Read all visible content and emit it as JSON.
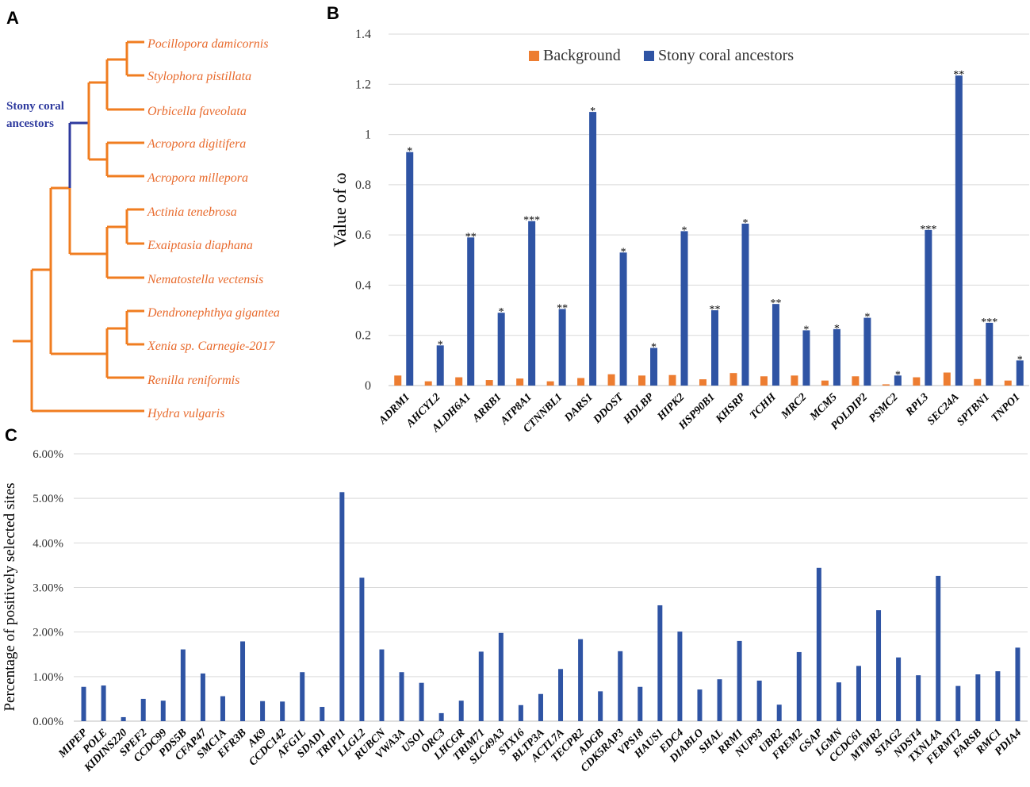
{
  "panels": {
    "a": "A",
    "b": "B",
    "c": "C"
  },
  "tree": {
    "ancestor_label_line1": "Stony coral",
    "ancestor_label_line2": "ancestors",
    "species": [
      "Pocillopora damicornis",
      "Stylophora pistillata",
      "Orbicella faveolata",
      "Acropora digitifera",
      "Acropora millepora",
      "Actinia tenebrosa",
      "Exaiptasia diaphana",
      "Nematostella vectensis",
      "Dendronephthya gigantea",
      "Xenia sp. Carnegie-2017",
      "Renilla reniformis",
      "Hydra vulgaris"
    ],
    "colors": {
      "branch": "#f07d20",
      "ancestor_branch": "#2e3a9e",
      "species_text": "#e86a2c"
    }
  },
  "chart_data": [
    {
      "type": "bar",
      "panel": "B",
      "ylabel": "Value of ω",
      "ylim": [
        0,
        1.4
      ],
      "yticks": [
        "0",
        "0.2",
        "0.4",
        "0.6",
        "0.8",
        "1",
        "1.2",
        "1.4"
      ],
      "legend": [
        "Background",
        "Stony coral ancestors"
      ],
      "legend_position": "top-center",
      "colors": {
        "Background": "#ed7d31",
        "Stony coral ancestors": "#2f54a4"
      },
      "categories": [
        "ADRM1",
        "AHCYL2",
        "ALDH6A1",
        "ARRB1",
        "ATP8A1",
        "CTNNBL1",
        "DARS1",
        "DDOST",
        "HDLBP",
        "HIPK2",
        "HSP90B1",
        "KHSRP",
        "TCHH",
        "MRC2",
        "MCM5",
        "POLDIP2",
        "PSMC2",
        "RPL3",
        "SEC24A",
        "SPTBN1",
        "TNPO1"
      ],
      "series": [
        {
          "name": "Background",
          "values": [
            0.04,
            0.017,
            0.033,
            0.022,
            0.028,
            0.017,
            0.03,
            0.045,
            0.04,
            0.042,
            0.025,
            0.05,
            0.037,
            0.04,
            0.02,
            0.037,
            0.005,
            0.033,
            0.052,
            0.026,
            0.02
          ]
        },
        {
          "name": "Stony coral ancestors",
          "values": [
            0.93,
            0.16,
            0.59,
            0.29,
            0.655,
            0.305,
            1.09,
            0.53,
            0.15,
            0.615,
            0.3,
            0.645,
            0.325,
            0.22,
            0.225,
            0.27,
            0.04,
            0.62,
            1.235,
            0.25,
            0.1
          ]
        }
      ],
      "significance": [
        "*",
        "*",
        "**",
        "*",
        "***",
        "**",
        "*",
        "*",
        "*",
        "*",
        "**",
        "*",
        "**",
        "*",
        "*",
        "*",
        "*",
        "***",
        "**",
        "***",
        "*"
      ]
    },
    {
      "type": "bar",
      "panel": "C",
      "ylabel": "Percentage of positively selected sites",
      "ylim": [
        0,
        6
      ],
      "yticks": [
        "0.00%",
        "1.00%",
        "2.00%",
        "3.00%",
        "4.00%",
        "5.00%",
        "6.00%"
      ],
      "color": "#2f54a4",
      "categories": [
        "MIPEP",
        "POLE",
        "KIDINS220",
        "SPEF2",
        "CCDC99",
        "PDS5B",
        "CFAP47",
        "SMC1A",
        "EFR3B",
        "AK9",
        "CCDC142",
        "AFG1L",
        "SDAD1",
        "TRIP11",
        "LLGL2",
        "RUBCN",
        "VWA3A",
        "USO1",
        "ORC3",
        "LHCGR",
        "TRIM71",
        "SLC49A3",
        "STX16",
        "BLTP3A",
        "ACTL7A",
        "TECPR2",
        "ADGB",
        "CDK5RAP3",
        "VPS18",
        "HAUS1",
        "EDC4",
        "DIABLO",
        "SHAL",
        "RRM1",
        "NUP93",
        "UBR2",
        "FREM2",
        "GSAP",
        "LGMN",
        "CCDC61",
        "MTMR2",
        "STAG2",
        "NDST4",
        "TXNL4A",
        "FERMT2",
        "FARSB",
        "RMC1",
        "PDIA4"
      ],
      "values": [
        0.77,
        0.8,
        0.09,
        0.5,
        0.46,
        1.61,
        1.07,
        0.56,
        1.79,
        0.45,
        0.44,
        1.1,
        0.32,
        5.14,
        3.22,
        1.61,
        1.1,
        0.86,
        0.18,
        0.46,
        1.56,
        1.98,
        0.36,
        0.61,
        1.17,
        1.84,
        0.67,
        1.57,
        0.77,
        2.6,
        2.01,
        0.71,
        0.94,
        1.8,
        0.91,
        0.37,
        1.55,
        3.44,
        0.87,
        1.24,
        2.49,
        1.43,
        1.03,
        3.26,
        0.79,
        1.05,
        1.12,
        1.65
      ]
    }
  ]
}
